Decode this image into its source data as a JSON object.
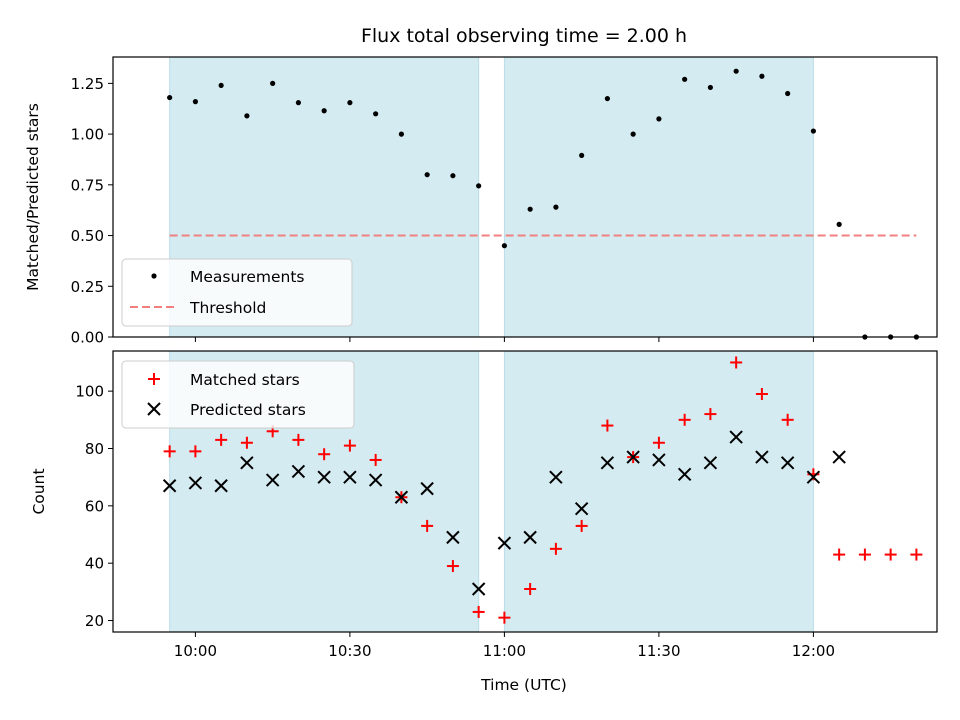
{
  "chart_data": [
    {
      "type": "scatter",
      "title": "Flux total observing time = 2.00 h",
      "ylabel": "Matched/Predicted stars",
      "xlabel": "",
      "ylim": [
        0,
        1.38
      ],
      "yticks": [
        "0.00",
        "0.25",
        "0.50",
        "0.75",
        "1.00",
        "1.25"
      ],
      "ytick_values": [
        0,
        0.25,
        0.5,
        0.75,
        1.0,
        1.25
      ],
      "grid": false,
      "legend_position": "bottom-left",
      "shaded_intervals": [
        [
          "09:55",
          "10:55"
        ],
        [
          "11:00",
          "12:00"
        ]
      ],
      "series": [
        {
          "name": "Measurements",
          "marker": "dot",
          "color": "#000000",
          "x": [
            "09:55",
            "10:00",
            "10:05",
            "10:10",
            "10:15",
            "10:20",
            "10:25",
            "10:30",
            "10:35",
            "10:40",
            "10:45",
            "10:50",
            "10:55",
            "11:00",
            "11:05",
            "11:10",
            "11:15",
            "11:20",
            "11:25",
            "11:30",
            "11:35",
            "11:40",
            "11:45",
            "11:50",
            "11:55",
            "12:00",
            "12:05",
            "12:10",
            "12:15",
            "12:20"
          ],
          "y": [
            1.18,
            1.16,
            1.24,
            1.09,
            1.25,
            1.155,
            1.115,
            1.155,
            1.1,
            1.0,
            0.8,
            0.795,
            0.745,
            0.45,
            0.63,
            0.64,
            0.895,
            1.175,
            1.0,
            1.075,
            1.27,
            1.23,
            1.31,
            1.285,
            1.2,
            1.015,
            0.555,
            0,
            0,
            0
          ]
        },
        {
          "name": "Threshold",
          "marker": "dashed-line",
          "color": "#f08080",
          "x": [
            "09:55",
            "12:20"
          ],
          "y": [
            0.5,
            0.5
          ]
        }
      ]
    },
    {
      "type": "scatter",
      "title": "",
      "ylabel": "Count",
      "xlabel": "Time (UTC)",
      "ylim": [
        16,
        114
      ],
      "yticks": [
        "20",
        "40",
        "60",
        "80",
        "100"
      ],
      "ytick_values": [
        20,
        40,
        60,
        80,
        100
      ],
      "xlim": [
        "09:44",
        "12:24"
      ],
      "xticks": [
        "10:00",
        "10:30",
        "11:00",
        "11:30",
        "12:00"
      ],
      "grid": false,
      "legend_position": "top-left",
      "shaded_intervals": [
        [
          "09:55",
          "10:55"
        ],
        [
          "11:00",
          "12:00"
        ]
      ],
      "series": [
        {
          "name": "Matched stars",
          "marker": "plus",
          "color": "#ff0000",
          "x": [
            "09:55",
            "10:00",
            "10:05",
            "10:10",
            "10:15",
            "10:20",
            "10:25",
            "10:30",
            "10:35",
            "10:40",
            "10:45",
            "10:50",
            "10:55",
            "11:00",
            "11:05",
            "11:10",
            "11:15",
            "11:20",
            "11:25",
            "11:30",
            "11:35",
            "11:40",
            "11:45",
            "11:50",
            "11:55",
            "12:00",
            "12:05",
            "12:10",
            "12:15",
            "12:20"
          ],
          "y": [
            79,
            79,
            83,
            82,
            86,
            83,
            78,
            81,
            76,
            63,
            53,
            39,
            23,
            21,
            31,
            45,
            53,
            88,
            77,
            82,
            90,
            92,
            110,
            99,
            90,
            71,
            43,
            43,
            43,
            43
          ]
        },
        {
          "name": "Predicted stars",
          "marker": "x",
          "color": "#000000",
          "x": [
            "09:55",
            "10:00",
            "10:05",
            "10:10",
            "10:15",
            "10:20",
            "10:25",
            "10:30",
            "10:35",
            "10:40",
            "10:45",
            "10:50",
            "10:55",
            "11:00",
            "11:05",
            "11:10",
            "11:15",
            "11:20",
            "11:25",
            "11:30",
            "11:35",
            "11:40",
            "11:45",
            "11:50",
            "11:55",
            "12:00",
            "12:05"
          ],
          "y": [
            67,
            68,
            67,
            75,
            69,
            72,
            70,
            70,
            69,
            63,
            66,
            49,
            31,
            47,
            49,
            70,
            59,
            75,
            77,
            76,
            71,
            75,
            84,
            77,
            75,
            70,
            77
          ]
        }
      ]
    }
  ],
  "colors": {
    "shade_fill": "#d4ebf1",
    "shade_edge": "#b9dde8",
    "axis": "#000000",
    "threshold": "#f08080",
    "matched": "#ff0000",
    "predicted": "#000000",
    "measurement": "#000000"
  }
}
